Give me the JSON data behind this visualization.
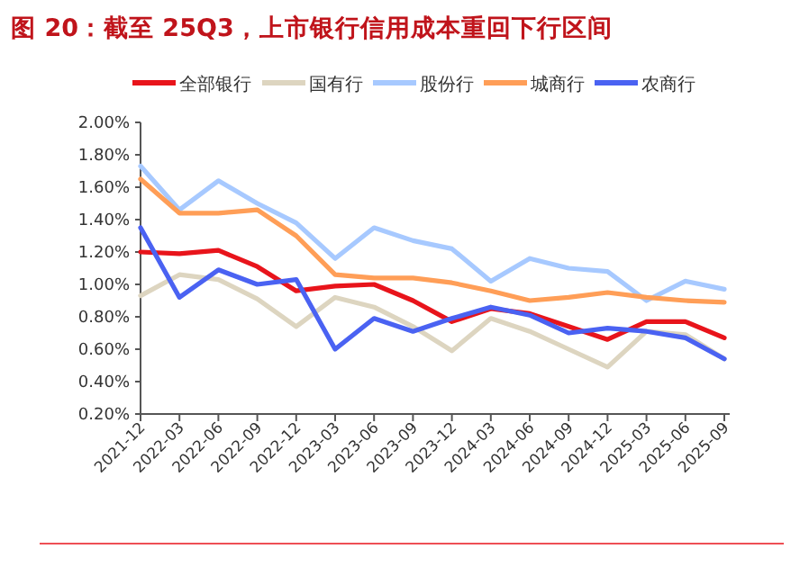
{
  "chart_data": {
    "type": "line",
    "title": "图 20：截至 25Q3，上市银行信用成本重回下行区间",
    "categories": [
      "2021-12",
      "2022-03",
      "2022-06",
      "2022-09",
      "2022-12",
      "2023-03",
      "2023-06",
      "2023-09",
      "2023-12",
      "2024-03",
      "2024-06",
      "2024-09",
      "2024-12",
      "2025-03",
      "2025-06",
      "2025-09"
    ],
    "series": [
      {
        "name": "全部银行",
        "color": "#e8141b",
        "values": [
          1.2,
          1.19,
          1.21,
          1.11,
          0.96,
          0.99,
          1.0,
          0.9,
          0.77,
          0.85,
          0.82,
          0.74,
          0.66,
          0.77,
          0.77,
          0.67
        ]
      },
      {
        "name": "国有行",
        "color": "#ddd5c0",
        "values": [
          0.93,
          1.06,
          1.03,
          0.91,
          0.74,
          0.92,
          0.86,
          0.74,
          0.59,
          0.79,
          0.71,
          0.6,
          0.49,
          0.71,
          0.69,
          0.54
        ]
      },
      {
        "name": "股份行",
        "color": "#a7c9ff",
        "values": [
          1.73,
          1.46,
          1.64,
          1.5,
          1.38,
          1.16,
          1.35,
          1.27,
          1.22,
          1.02,
          1.16,
          1.1,
          1.08,
          0.9,
          1.02,
          0.97
        ]
      },
      {
        "name": "城商行",
        "color": "#ff9e57",
        "values": [
          1.65,
          1.44,
          1.44,
          1.46,
          1.3,
          1.06,
          1.04,
          1.04,
          1.01,
          0.96,
          0.9,
          0.92,
          0.95,
          0.92,
          0.9,
          0.89
        ]
      },
      {
        "name": "农商行",
        "color": "#4a62f2",
        "values": [
          1.35,
          0.92,
          1.09,
          1.0,
          1.03,
          0.6,
          0.79,
          0.71,
          0.79,
          0.86,
          0.81,
          0.7,
          0.73,
          0.71,
          0.67,
          0.54
        ]
      }
    ],
    "ylim": [
      0.2,
      2.0
    ],
    "yticks": [
      {
        "value": 0.2,
        "label": "0.20%"
      },
      {
        "value": 0.4,
        "label": "0.40%"
      },
      {
        "value": 0.6,
        "label": "0.60%"
      },
      {
        "value": 0.8,
        "label": "0.80%"
      },
      {
        "value": 1.0,
        "label": "1.00%"
      },
      {
        "value": 1.2,
        "label": "1.20%"
      },
      {
        "value": 1.4,
        "label": "1.40%"
      },
      {
        "value": 1.6,
        "label": "1.60%"
      },
      {
        "value": 1.8,
        "label": "1.80%"
      },
      {
        "value": 2.0,
        "label": "2.00%"
      }
    ],
    "legend": "top",
    "grid": false,
    "marker": "none",
    "line_style": "solid"
  }
}
